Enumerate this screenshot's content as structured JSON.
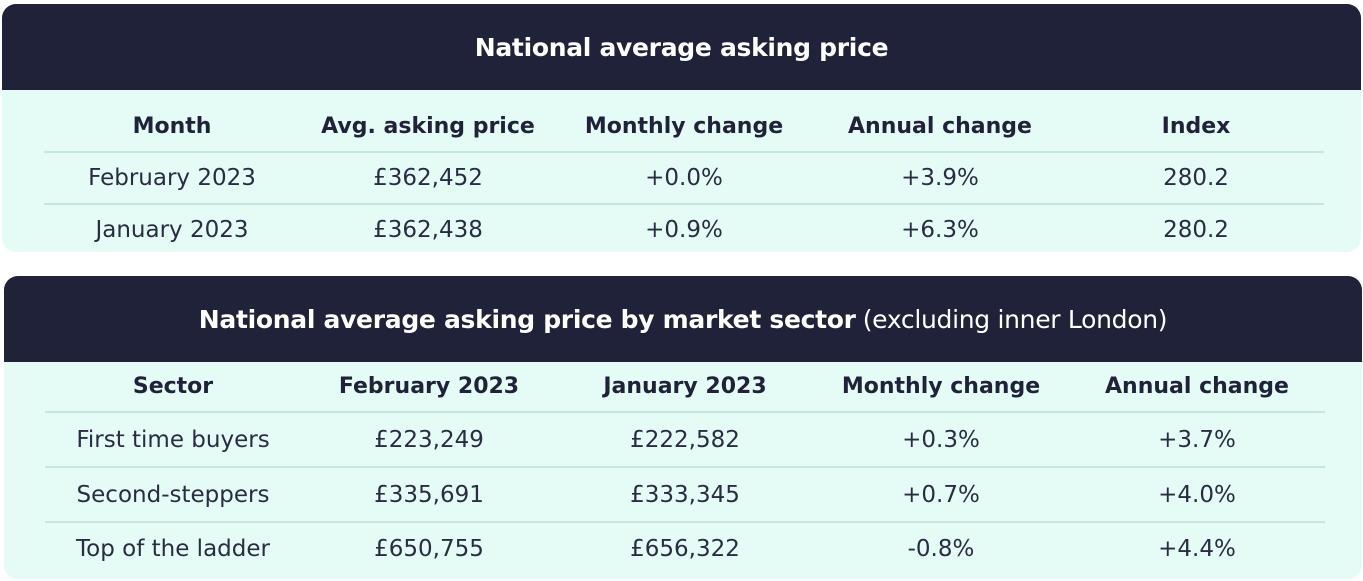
{
  "table1": {
    "title": "National average asking price",
    "headers": [
      "Month",
      "Avg. asking price",
      "Monthly change",
      "Annual change",
      "Index"
    ],
    "rows": [
      [
        "February 2023",
        "£362,452",
        "+0.0%",
        "+3.9%",
        "280.2"
      ],
      [
        "January 2023",
        "£362,438",
        "+0.9%",
        "+6.3%",
        "280.2"
      ]
    ]
  },
  "table2": {
    "title_bold": "National average asking price by market sector",
    "title_light": "(excluding inner London)",
    "headers": [
      "Sector",
      "February 2023",
      "January 2023",
      "Monthly change",
      "Annual change"
    ],
    "rows": [
      [
        "First time buyers",
        "£223,249",
        "£222,582",
        "+0.3%",
        "+3.7%"
      ],
      [
        "Second-steppers",
        "£335,691",
        "£333,345",
        "+0.7%",
        "+4.0%"
      ],
      [
        "Top of the ladder",
        "£650,755",
        "£656,322",
        "-0.8%",
        "+4.4%"
      ]
    ]
  },
  "colors": {
    "header_bg": "#1f2239",
    "card_bg": "#e5fbf5",
    "divider": "#c6e7df"
  }
}
